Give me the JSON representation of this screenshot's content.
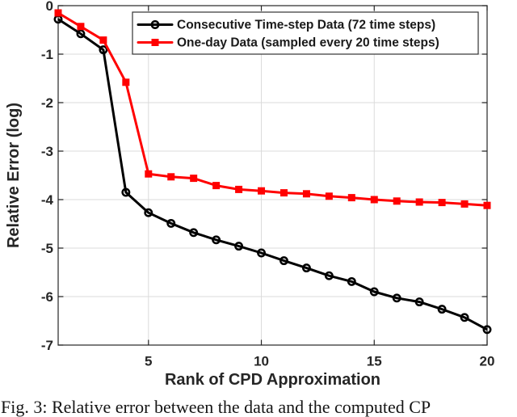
{
  "figure": {
    "caption": "Fig. 3: Relative error between the data and the computed CP"
  },
  "chart_data": {
    "type": "line",
    "title": "",
    "xlabel": "Rank of CPD Approximation",
    "ylabel": "Relative Error (log)",
    "xlim": [
      1,
      20
    ],
    "ylim": [
      -7,
      0
    ],
    "x_ticks": [
      5,
      10,
      15,
      20
    ],
    "y_ticks": [
      0,
      -1,
      -2,
      -3,
      -4,
      -5,
      -6,
      -7
    ],
    "grid": true,
    "legend_position": "inside-top",
    "x": [
      1,
      2,
      3,
      4,
      5,
      6,
      7,
      8,
      9,
      10,
      11,
      12,
      13,
      14,
      15,
      16,
      17,
      18,
      19,
      20
    ],
    "series": [
      {
        "name": "Consecutive Time-step Data (72 time steps)",
        "color": "#000000",
        "marker": "open-circle",
        "values": [
          -0.28,
          -0.58,
          -0.91,
          -3.85,
          -4.27,
          -4.49,
          -4.68,
          -4.83,
          -4.96,
          -5.1,
          -5.26,
          -5.41,
          -5.57,
          -5.69,
          -5.9,
          -6.03,
          -6.11,
          -6.26,
          -6.43,
          -6.68
        ]
      },
      {
        "name": "One-day Data (sampled every 20 time steps)",
        "color": "#ff0000",
        "marker": "filled-square",
        "values": [
          -0.15,
          -0.43,
          -0.71,
          -1.58,
          -3.47,
          -3.53,
          -3.56,
          -3.71,
          -3.79,
          -3.82,
          -3.86,
          -3.88,
          -3.93,
          -3.96,
          -4.0,
          -4.03,
          -4.05,
          -4.06,
          -4.09,
          -4.12
        ]
      }
    ],
    "style": {
      "axis_color": "#262626",
      "grid_color": "#dbdbdb",
      "legend_border_color": "#333333",
      "background": "#ffffff",
      "line_width": 3
    }
  }
}
